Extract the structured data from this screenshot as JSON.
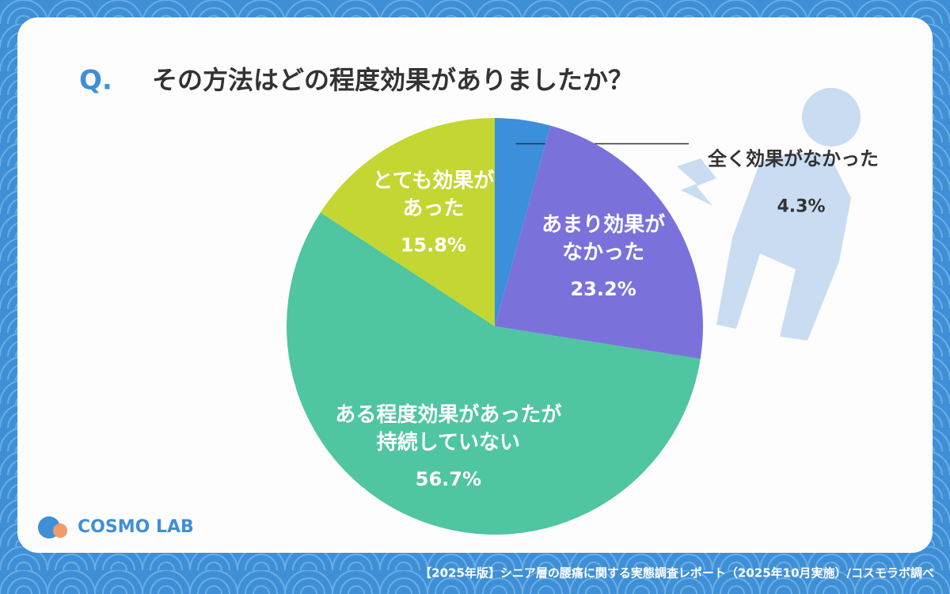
{
  "chart_data": {
    "type": "pie",
    "question_mark": "Q.",
    "title": "その方法はどの程度効果がありましたか？",
    "categories": [
      "全く効果がなかった",
      "あまり効果が\nなかった",
      "ある程度効果があったが\n持続していない",
      "とても効果が\nあった"
    ],
    "values": [
      4.3,
      23.2,
      56.7,
      15.8
    ],
    "value_labels": [
      "4.3%",
      "23.2%",
      "56.7%",
      "15.8%"
    ],
    "colors": [
      "#3b8fdb",
      "#7a72da",
      "#4fc5a1",
      "#c3d631"
    ],
    "logo": "COSMO LAB",
    "footer": "【2025年版】シニア層の腰痛に関する実態調査レポート（2025年10月実施）/コスモラボ調べ"
  }
}
